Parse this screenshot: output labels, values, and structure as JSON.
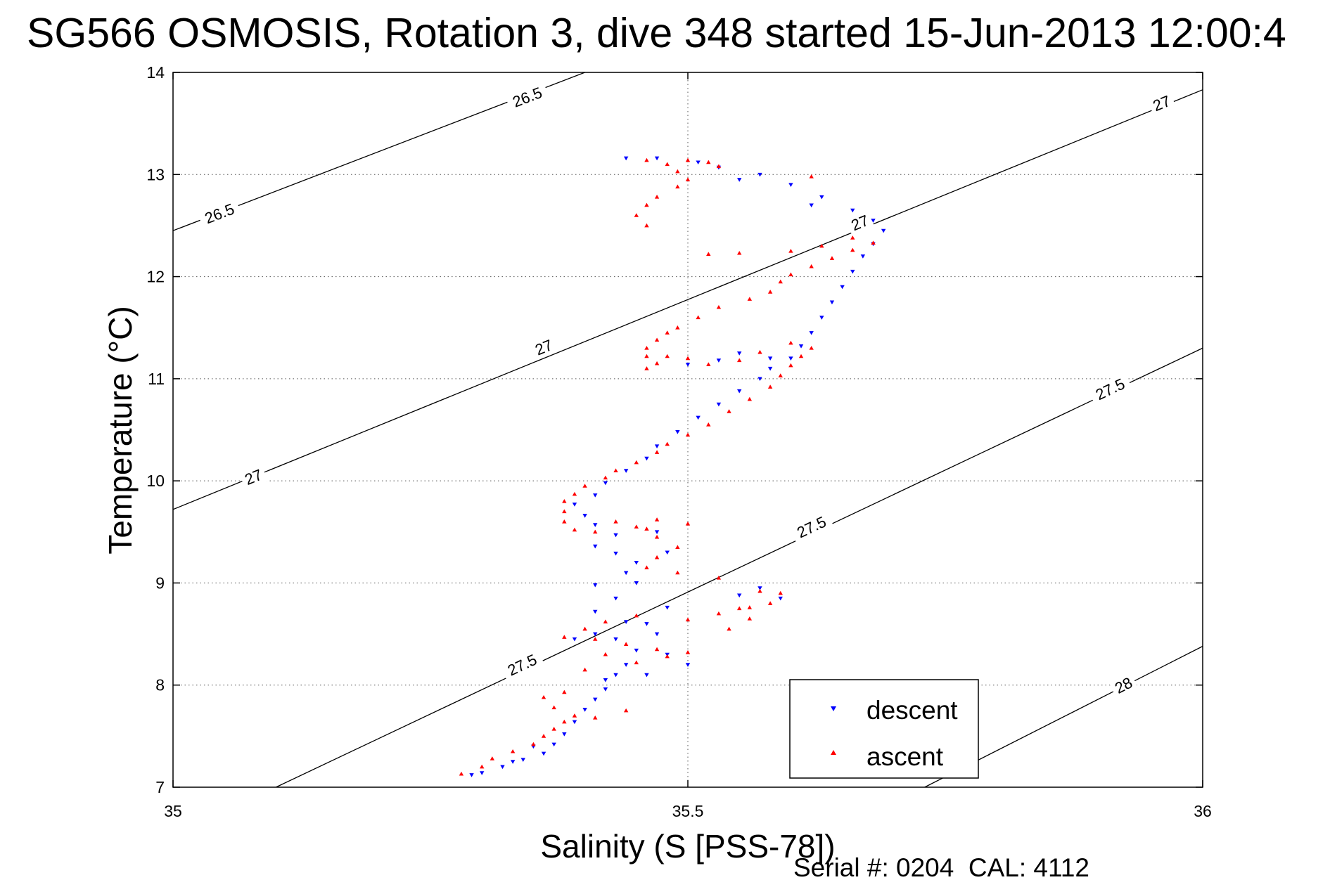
{
  "chart_data": {
    "type": "scatter",
    "title": "SG566 OSMOSIS, Rotation 3, dive 348 started 15-Jun-2013 12:00:4",
    "xlabel": "Salinity (S [PSS-78])",
    "ylabel": "Temperature (°C)",
    "xlim": [
      35,
      36
    ],
    "ylim": [
      7,
      14
    ],
    "xticks": [
      "35",
      "35.5",
      "36"
    ],
    "yticks": [
      "7",
      "8",
      "9",
      "10",
      "11",
      "12",
      "13",
      "14"
    ],
    "grid": true,
    "legend_position": "bottom-right",
    "footer": "Serial #: 0204  CAL: 4112",
    "isopycnals": [
      {
        "label": "26.5",
        "points": [
          [
            35.0,
            12.45
          ],
          [
            35.4,
            14.0
          ]
        ],
        "labels": [
          [
            35.045,
            12.62
          ],
          [
            35.344,
            13.76
          ]
        ]
      },
      {
        "label": "27",
        "points": [
          [
            35.0,
            9.72
          ],
          [
            36.0,
            13.83
          ]
        ],
        "labels": [
          [
            35.078,
            10.04
          ],
          [
            35.36,
            11.31
          ],
          [
            35.667,
            12.53
          ],
          [
            35.96,
            13.7
          ]
        ]
      },
      {
        "label": "27.5",
        "points": [
          [
            35.1,
            7.0
          ],
          [
            36.0,
            11.3
          ]
        ],
        "labels": [
          [
            35.339,
            8.2
          ],
          [
            35.62,
            9.55
          ],
          [
            35.91,
            10.9
          ]
        ]
      },
      {
        "label": "28",
        "points": [
          [
            35.73,
            7.0
          ],
          [
            36.0,
            8.38
          ]
        ],
        "labels": [
          [
            35.923,
            8.0
          ]
        ]
      }
    ],
    "series": [
      {
        "name": "descent",
        "color": "#0000ff",
        "marker": "triangle-down",
        "points": [
          [
            35.29,
            7.12
          ],
          [
            35.3,
            7.14
          ],
          [
            35.32,
            7.2
          ],
          [
            35.34,
            7.27
          ],
          [
            35.36,
            7.33
          ],
          [
            35.37,
            7.42
          ],
          [
            35.38,
            7.52
          ],
          [
            35.39,
            7.64
          ],
          [
            35.4,
            7.76
          ],
          [
            35.41,
            7.86
          ],
          [
            35.42,
            7.96
          ],
          [
            35.43,
            8.1
          ],
          [
            35.44,
            8.2
          ],
          [
            35.45,
            8.34
          ],
          [
            35.43,
            8.45
          ],
          [
            35.41,
            8.5
          ],
          [
            35.44,
            8.62
          ],
          [
            35.41,
            8.72
          ],
          [
            35.43,
            8.85
          ],
          [
            35.41,
            8.98
          ],
          [
            35.44,
            9.1
          ],
          [
            35.45,
            9.2
          ],
          [
            35.43,
            9.29
          ],
          [
            35.41,
            9.36
          ],
          [
            35.43,
            9.47
          ],
          [
            35.41,
            9.57
          ],
          [
            35.4,
            9.66
          ],
          [
            35.39,
            9.77
          ],
          [
            35.41,
            9.86
          ],
          [
            35.42,
            9.98
          ],
          [
            35.44,
            10.1
          ],
          [
            35.46,
            10.22
          ],
          [
            35.47,
            10.34
          ],
          [
            35.49,
            10.48
          ],
          [
            35.51,
            10.62
          ],
          [
            35.53,
            10.75
          ],
          [
            35.55,
            10.88
          ],
          [
            35.57,
            11.0
          ],
          [
            35.58,
            11.1
          ],
          [
            35.6,
            11.2
          ],
          [
            35.61,
            11.32
          ],
          [
            35.62,
            11.45
          ],
          [
            35.63,
            11.6
          ],
          [
            35.64,
            11.75
          ],
          [
            35.65,
            11.9
          ],
          [
            35.66,
            12.05
          ],
          [
            35.67,
            12.2
          ],
          [
            35.68,
            12.32
          ],
          [
            35.69,
            12.45
          ],
          [
            35.68,
            12.55
          ],
          [
            35.66,
            12.65
          ],
          [
            35.63,
            12.78
          ],
          [
            35.6,
            12.9
          ],
          [
            35.57,
            13.0
          ],
          [
            35.53,
            13.07
          ],
          [
            35.51,
            13.12
          ],
          [
            35.47,
            13.16
          ],
          [
            35.44,
            13.16
          ],
          [
            35.53,
            11.18
          ],
          [
            35.5,
            11.14
          ],
          [
            35.55,
            11.25
          ],
          [
            35.58,
            11.2
          ],
          [
            35.47,
            9.5
          ],
          [
            35.48,
            9.3
          ],
          [
            35.45,
            9.0
          ],
          [
            35.46,
            8.6
          ],
          [
            35.48,
            8.3
          ],
          [
            35.5,
            8.2
          ],
          [
            35.46,
            8.1
          ],
          [
            35.42,
            8.05
          ],
          [
            35.39,
            8.45
          ],
          [
            35.35,
            7.4
          ],
          [
            35.33,
            7.25
          ],
          [
            35.55,
            8.88
          ],
          [
            35.57,
            8.95
          ],
          [
            35.59,
            8.85
          ],
          [
            35.48,
            8.76
          ],
          [
            35.47,
            8.5
          ],
          [
            35.62,
            12.7
          ],
          [
            35.55,
            12.95
          ]
        ]
      },
      {
        "name": "ascent",
        "color": "#ff0000",
        "marker": "triangle-up",
        "points": [
          [
            35.28,
            7.13
          ],
          [
            35.3,
            7.2
          ],
          [
            35.31,
            7.28
          ],
          [
            35.33,
            7.35
          ],
          [
            35.35,
            7.42
          ],
          [
            35.36,
            7.5
          ],
          [
            35.37,
            7.57
          ],
          [
            35.38,
            7.64
          ],
          [
            35.39,
            7.7
          ],
          [
            35.37,
            7.78
          ],
          [
            35.36,
            7.88
          ],
          [
            35.38,
            7.93
          ],
          [
            35.4,
            8.15
          ],
          [
            35.42,
            8.3
          ],
          [
            35.45,
            8.22
          ],
          [
            35.48,
            8.28
          ],
          [
            35.5,
            8.32
          ],
          [
            35.47,
            8.35
          ],
          [
            35.44,
            8.4
          ],
          [
            35.41,
            8.45
          ],
          [
            35.38,
            8.47
          ],
          [
            35.4,
            8.55
          ],
          [
            35.42,
            8.62
          ],
          [
            35.45,
            8.68
          ],
          [
            35.5,
            8.64
          ],
          [
            35.53,
            8.7
          ],
          [
            35.56,
            8.76
          ],
          [
            35.58,
            8.8
          ],
          [
            35.59,
            8.9
          ],
          [
            35.57,
            8.92
          ],
          [
            35.53,
            9.05
          ],
          [
            35.49,
            9.1
          ],
          [
            35.46,
            9.15
          ],
          [
            35.47,
            9.25
          ],
          [
            35.49,
            9.35
          ],
          [
            35.47,
            9.45
          ],
          [
            35.45,
            9.55
          ],
          [
            35.43,
            9.6
          ],
          [
            35.47,
            9.62
          ],
          [
            35.5,
            9.58
          ],
          [
            35.46,
            9.53
          ],
          [
            35.41,
            9.5
          ],
          [
            35.39,
            9.52
          ],
          [
            35.38,
            9.6
          ],
          [
            35.38,
            9.7
          ],
          [
            35.38,
            9.8
          ],
          [
            35.39,
            9.87
          ],
          [
            35.4,
            9.95
          ],
          [
            35.42,
            10.03
          ],
          [
            35.43,
            10.1
          ],
          [
            35.45,
            10.18
          ],
          [
            35.47,
            10.28
          ],
          [
            35.48,
            10.36
          ],
          [
            35.5,
            10.45
          ],
          [
            35.52,
            10.55
          ],
          [
            35.54,
            10.68
          ],
          [
            35.56,
            10.8
          ],
          [
            35.58,
            10.92
          ],
          [
            35.59,
            11.03
          ],
          [
            35.6,
            11.13
          ],
          [
            35.61,
            11.22
          ],
          [
            35.62,
            11.3
          ],
          [
            35.6,
            11.35
          ],
          [
            35.57,
            11.26
          ],
          [
            35.55,
            11.18
          ],
          [
            35.52,
            11.14
          ],
          [
            35.5,
            11.2
          ],
          [
            35.48,
            11.22
          ],
          [
            35.47,
            11.15
          ],
          [
            35.46,
            11.1
          ],
          [
            35.46,
            11.22
          ],
          [
            35.46,
            11.3
          ],
          [
            35.47,
            11.38
          ],
          [
            35.48,
            11.45
          ],
          [
            35.49,
            11.5
          ],
          [
            35.51,
            11.6
          ],
          [
            35.53,
            11.7
          ],
          [
            35.56,
            11.78
          ],
          [
            35.58,
            11.85
          ],
          [
            35.59,
            11.95
          ],
          [
            35.6,
            12.02
          ],
          [
            35.62,
            12.1
          ],
          [
            35.64,
            12.18
          ],
          [
            35.66,
            12.26
          ],
          [
            35.68,
            12.33
          ],
          [
            35.66,
            12.38
          ],
          [
            35.63,
            12.3
          ],
          [
            35.6,
            12.25
          ],
          [
            35.55,
            12.23
          ],
          [
            35.52,
            12.22
          ],
          [
            35.46,
            12.5
          ],
          [
            35.45,
            12.6
          ],
          [
            35.46,
            12.7
          ],
          [
            35.47,
            12.78
          ],
          [
            35.49,
            12.88
          ],
          [
            35.5,
            12.95
          ],
          [
            35.49,
            13.03
          ],
          [
            35.48,
            13.1
          ],
          [
            35.46,
            13.14
          ],
          [
            35.5,
            13.14
          ],
          [
            35.52,
            13.12
          ],
          [
            35.53,
            13.08
          ],
          [
            35.62,
            12.98
          ],
          [
            35.55,
            8.75
          ],
          [
            35.54,
            8.55
          ],
          [
            35.56,
            8.65
          ],
          [
            35.44,
            7.75
          ],
          [
            35.41,
            7.68
          ]
        ]
      }
    ]
  }
}
